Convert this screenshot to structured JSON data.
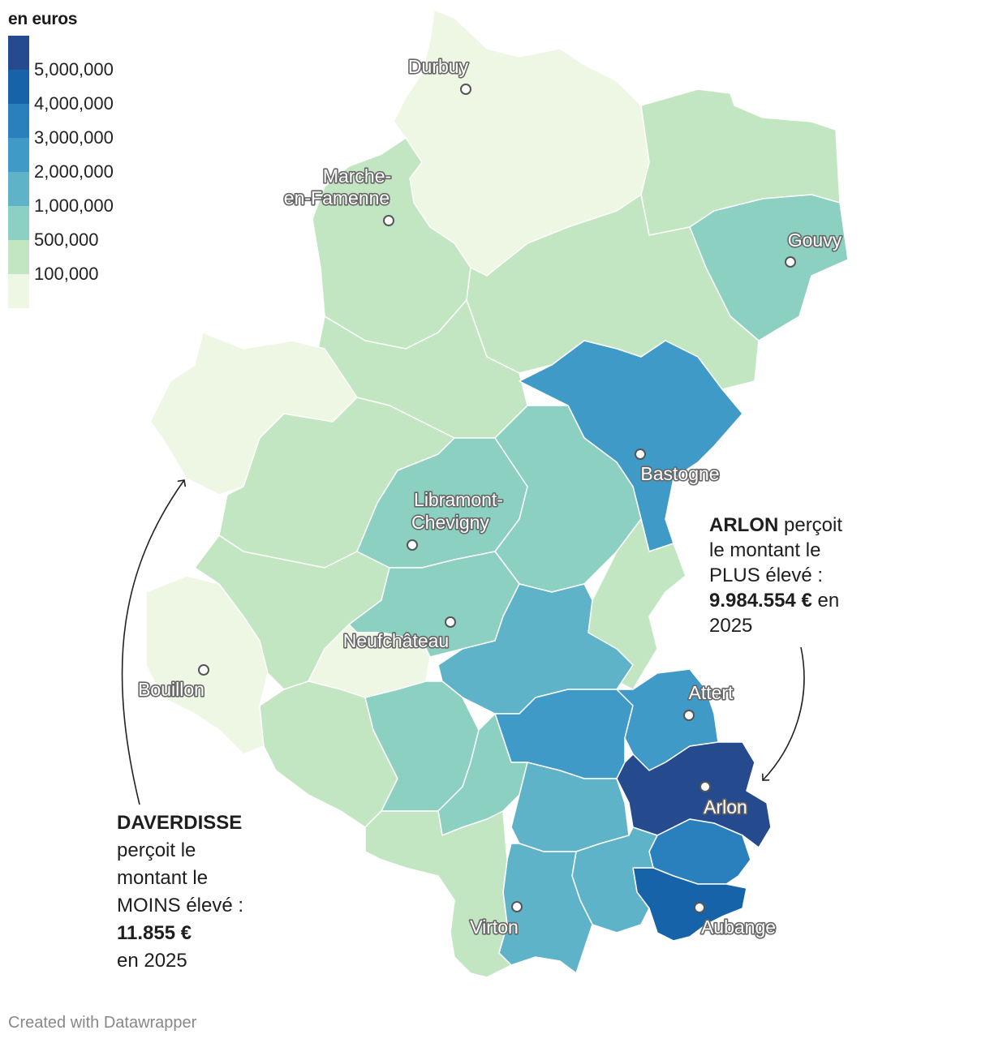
{
  "legend": {
    "title": "en euros",
    "bins": [
      {
        "label": "5,000,000",
        "color": "#264a8e"
      },
      {
        "label": "4,000,000",
        "color": "#1763a9"
      },
      {
        "label": "3,000,000",
        "color": "#2a80bd"
      },
      {
        "label": "2,000,000",
        "color": "#3f9ac7"
      },
      {
        "label": "1,000,000",
        "color": "#5fb3c8"
      },
      {
        "label": "500,000",
        "color": "#8bd0c0"
      },
      {
        "label": "100,000",
        "color": "#c2e6c2"
      },
      {
        "label": "",
        "color": "#eef7e4"
      }
    ]
  },
  "cities": {
    "durbuy": "Durbuy",
    "marche_line1": "Marche-",
    "marche_line2": "en-Famenne",
    "gouvy": "Gouvy",
    "bastogne": "Bastogne",
    "libramont_line1": "Libramont-",
    "libramont_line2": "Chevigny",
    "neufchateau": "Neufchâteau",
    "bouillon": "Bouillon",
    "attert": "Attert",
    "arlon": "Arlon",
    "virton": "Virton",
    "aubange": "Aubange"
  },
  "annotations": {
    "arlon": {
      "name": "ARLON",
      "text1": " perçoit",
      "line2": "le montant le",
      "line3": "PLUS élevé :",
      "amount": "9.984.554 €",
      "text_after_amount": " en",
      "year": "2025"
    },
    "daverdisse": {
      "name": "DAVERDISSE",
      "line2": "perçoit le",
      "line3": "montant le",
      "line4": "MOINS élevé :",
      "amount": "11.855 €",
      "line6": "en 2025"
    }
  },
  "footer": "Created with Datawrapper"
}
